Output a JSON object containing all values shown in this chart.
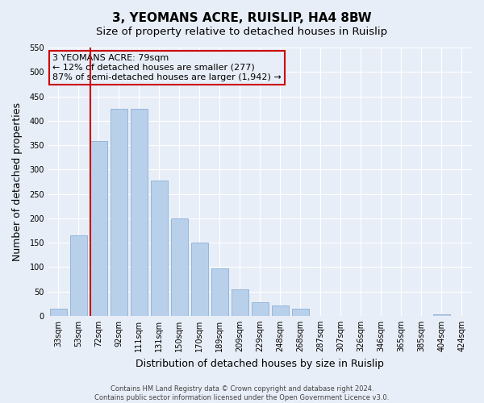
{
  "title": "3, YEOMANS ACRE, RUISLIP, HA4 8BW",
  "subtitle": "Size of property relative to detached houses in Ruislip",
  "xlabel": "Distribution of detached houses by size in Ruislip",
  "ylabel": "Number of detached properties",
  "bar_labels": [
    "33sqm",
    "53sqm",
    "72sqm",
    "92sqm",
    "111sqm",
    "131sqm",
    "150sqm",
    "170sqm",
    "189sqm",
    "209sqm",
    "229sqm",
    "248sqm",
    "268sqm",
    "287sqm",
    "307sqm",
    "326sqm",
    "346sqm",
    "365sqm",
    "385sqm",
    "404sqm",
    "424sqm"
  ],
  "bar_vals": [
    15,
    165,
    358,
    425,
    425,
    278,
    200,
    150,
    97,
    55,
    28,
    22,
    14,
    0,
    0,
    0,
    0,
    0,
    0,
    3,
    0
  ],
  "ylim": [
    0,
    550
  ],
  "yticks": [
    0,
    50,
    100,
    150,
    200,
    250,
    300,
    350,
    400,
    450,
    500,
    550
  ],
  "bar_color": "#b8d0ea",
  "bar_edge_color": "#8ab0d8",
  "property_line_index": 2,
  "property_line_color": "#cc0000",
  "annotation_title": "3 YEOMANS ACRE: 79sqm",
  "annotation_line1": "← 12% of detached houses are smaller (277)",
  "annotation_line2": "87% of semi-detached houses are larger (1,942) →",
  "footer1": "Contains HM Land Registry data © Crown copyright and database right 2024.",
  "footer2": "Contains public sector information licensed under the Open Government Licence v3.0.",
  "background_color": "#e8eef7",
  "plot_bg_color": "#e8eef7",
  "grid_color": "#ffffff",
  "title_fontsize": 11,
  "subtitle_fontsize": 9.5,
  "tick_fontsize": 7,
  "axis_label_fontsize": 9
}
